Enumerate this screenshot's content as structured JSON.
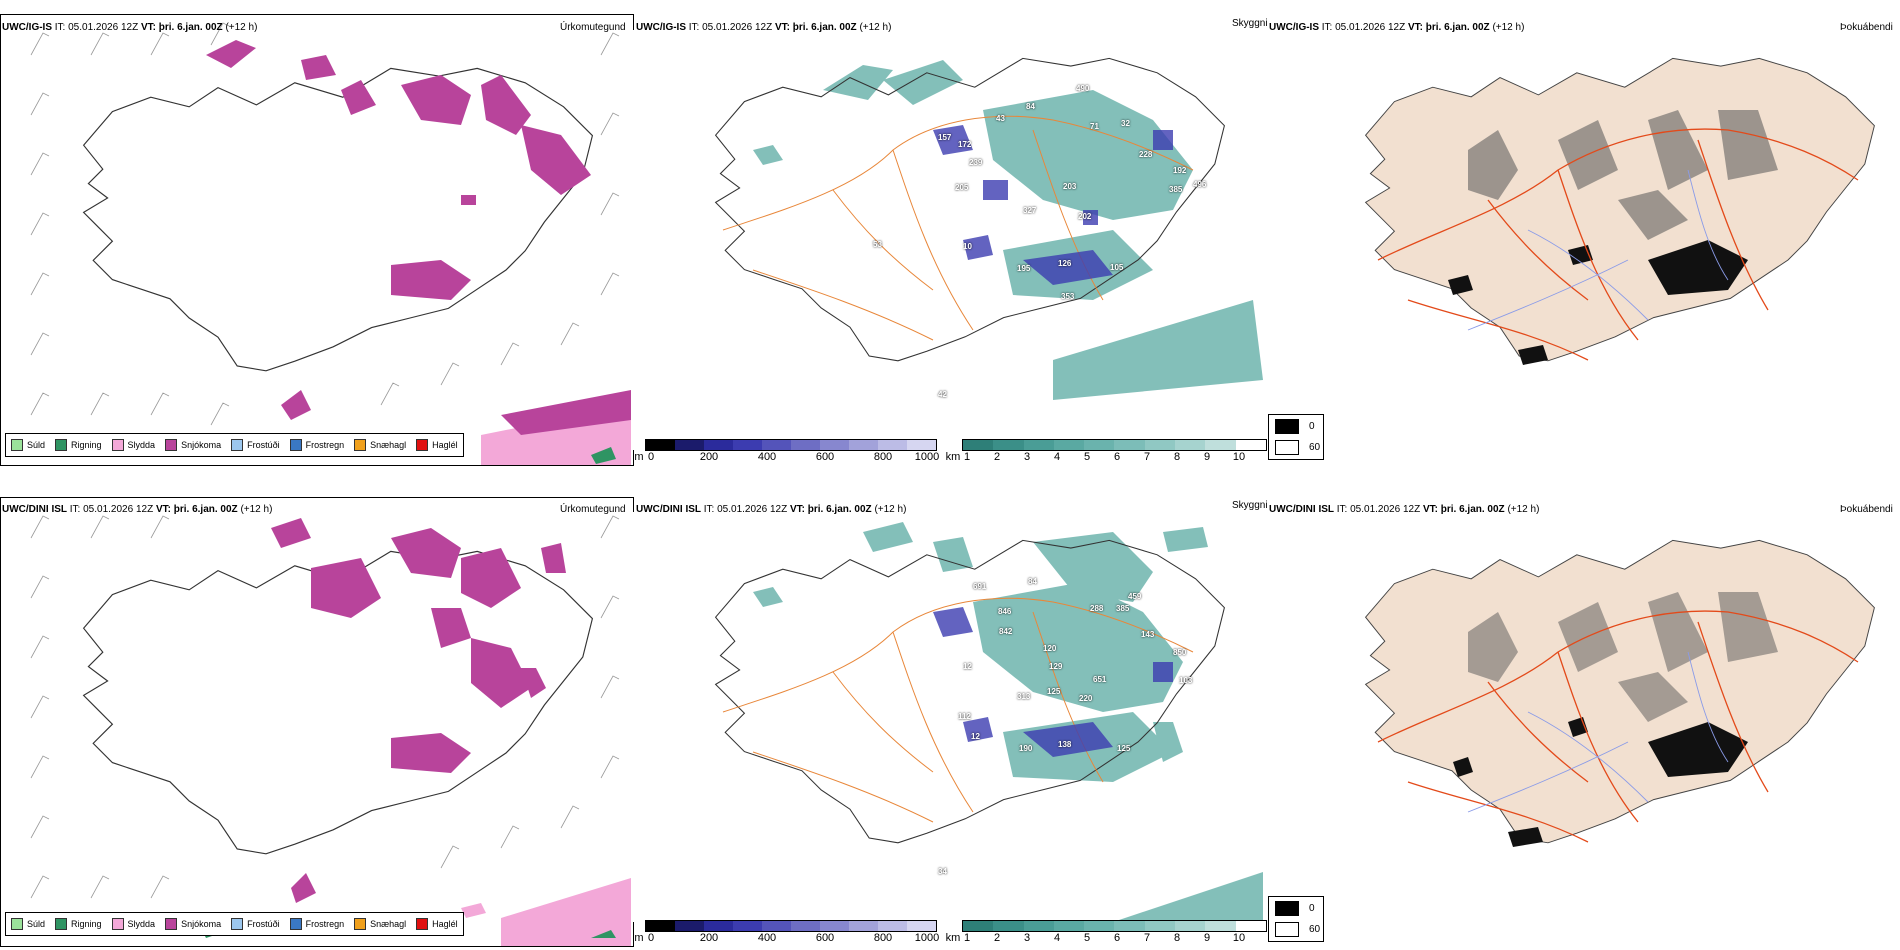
{
  "rows": [
    {
      "model_label": "UWC/IG-IS",
      "it_label": "IT:",
      "it_value": "05.01.2026 12Z",
      "vt_label": "VT:",
      "vt_value": "þri. 6.jan. 00Z",
      "lead": "(+12 h)",
      "panel_titles": {
        "precip": "Úrkomutegund",
        "visibility": "Skyggni",
        "fog": "Þokuábendi"
      },
      "cloud_labels": [
        "490",
        "43",
        "84",
        "71",
        "32",
        "157",
        "172",
        "239",
        "228",
        "192",
        "496",
        "205",
        "385",
        "203",
        "327",
        "202",
        "10",
        "195",
        "126",
        "105",
        "353",
        "53",
        "42"
      ]
    },
    {
      "model_label": "UWC/DINI ISL",
      "it_label": "IT:",
      "it_value": "05.01.2026 12Z",
      "vt_label": "VT:",
      "vt_value": "þri. 6.jan. 00Z",
      "lead": "(+12 h)",
      "panel_titles": {
        "precip": "Úrkomutegund",
        "visibility": "Skyggni",
        "fog": "Þokuábendi"
      },
      "cloud_labels": [
        "691",
        "846",
        "84",
        "288",
        "385",
        "459",
        "842",
        "120",
        "129",
        "143",
        "850",
        "103",
        "12",
        "313",
        "125",
        "220",
        "651",
        "190",
        "138",
        "125",
        "112",
        "12",
        "34"
      ]
    }
  ],
  "precip_legend": [
    {
      "label": "Súld",
      "color": "#9be39b"
    },
    {
      "label": "Rigning",
      "color": "#2f9463"
    },
    {
      "label": "Slydda",
      "color": "#f3a8d8"
    },
    {
      "label": "Snjókoma",
      "color": "#b8449b"
    },
    {
      "label": "Frostúði",
      "color": "#9cc7ee"
    },
    {
      "label": "Frostregn",
      "color": "#3a78c4"
    },
    {
      "label": "Snæhagl",
      "color": "#f0a01c"
    },
    {
      "label": "Haglél",
      "color": "#e01010"
    }
  ],
  "height_bar": {
    "unit": "m",
    "ticks": [
      "0",
      "200",
      "400",
      "600",
      "800",
      "1000"
    ],
    "colors": [
      "#000000",
      "#1b1b6b",
      "#2b2b9c",
      "#3c3cb0",
      "#5454ba",
      "#6e6ec4",
      "#8787cf",
      "#a2a2da",
      "#bcbce6",
      "#d6d6f1"
    ]
  },
  "visibility_bar": {
    "unit": "km",
    "ticks": [
      "1",
      "2",
      "3",
      "4",
      "5",
      "6",
      "7",
      "8",
      "9",
      "10"
    ],
    "colors": [
      "#2e7f78",
      "#3b8f88",
      "#4a9d96",
      "#5aa9a2",
      "#6ab3ad",
      "#7cbdb8",
      "#90c8c3",
      "#a6d3cf",
      "#bfdfdc",
      "#ffffff"
    ]
  },
  "fog_legend": [
    {
      "value": "0",
      "color": "#000000"
    },
    {
      "value": "60",
      "color": "#ffffff"
    }
  ]
}
